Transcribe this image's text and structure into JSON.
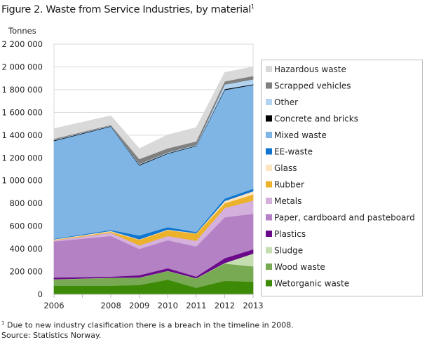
{
  "title": "Figure 2. Waste from Service Industries, by material",
  "title_footnote_mark": "1",
  "footnote_mark": "1",
  "footnote": "Due to new industry clasification there is a breach in the timeline in 2008.",
  "source": "Source: Statistics Norway.",
  "chart_data": {
    "type": "area",
    "stacked": true,
    "title": "Figure 2. Waste from Service Industries, by material",
    "ylabel": "Tonnes",
    "xlabel": "",
    "x": [
      2006,
      2008,
      2009,
      2010,
      2011,
      2012,
      2013
    ],
    "x_ticks": [
      2006,
      2007,
      2008,
      2009,
      2010,
      2011,
      2012,
      2013
    ],
    "x_tick_labels": [
      "2006",
      "",
      "2008",
      "2009",
      "2010",
      "2011",
      "2012",
      "2013"
    ],
    "ylim": [
      0,
      2200000
    ],
    "y_ticks": [
      0,
      200000,
      400000,
      600000,
      800000,
      1000000,
      1200000,
      1400000,
      1600000,
      1800000,
      2000000,
      2200000
    ],
    "y_tick_labels": [
      "0",
      "200 000",
      "400 000",
      "600 000",
      "800 000",
      "1 000 000",
      "1 200 000",
      "1 400 000",
      "1 600 000",
      "1 800 000",
      "2 000 000",
      "2 200 000"
    ],
    "grid": true,
    "legend_position": "right",
    "series": [
      {
        "name": "Wetorganic waste",
        "color": "#3c8a05",
        "values": [
          76000,
          76000,
          82000,
          129000,
          57000,
          119000,
          111000
        ]
      },
      {
        "name": "Wood waste",
        "color": "#77aa52",
        "values": [
          55000,
          68000,
          64000,
          76000,
          83000,
          152000,
          135000
        ]
      },
      {
        "name": "Sludge",
        "color": "#c5deb1",
        "values": [
          2000,
          2000,
          2000,
          2000,
          2000,
          5000,
          113000
        ]
      },
      {
        "name": "Plastics",
        "color": "#6a0a8a",
        "values": [
          15000,
          10000,
          20000,
          23000,
          14000,
          42000,
          37000
        ]
      },
      {
        "name": "Paper, cardboard and pasteboard",
        "color": "#b481c4",
        "values": [
          318000,
          357000,
          232000,
          246000,
          265000,
          360000,
          313000
        ]
      },
      {
        "name": "Metals",
        "color": "#d4b1dd",
        "values": [
          8000,
          29000,
          31000,
          37000,
          51000,
          82000,
          116000
        ]
      },
      {
        "name": "Rubber",
        "color": "#ecb22b",
        "values": [
          4000,
          8000,
          49000,
          52000,
          62000,
          41000,
          54000
        ]
      },
      {
        "name": "Glass",
        "color": "#fce4c0",
        "values": [
          6000,
          8000,
          4000,
          5000,
          4000,
          20000,
          28000
        ]
      },
      {
        "name": "EE-waste",
        "color": "#0f75d0",
        "values": [
          4000,
          8000,
          33000,
          21000,
          10000,
          21000,
          21000
        ]
      },
      {
        "name": "Mixed waste",
        "color": "#7fb5e4",
        "values": [
          861000,
          910000,
          617000,
          646000,
          756000,
          955000,
          914000
        ]
      },
      {
        "name": "Concrete and bricks",
        "color": "#000000",
        "values": [
          5000,
          4000,
          6000,
          5000,
          4000,
          8000,
          5000
        ]
      },
      {
        "name": "Other",
        "color": "#b4d3f0",
        "values": [
          6000,
          4000,
          6000,
          6000,
          6000,
          40000,
          43000
        ]
      },
      {
        "name": "Scrapped vehicles",
        "color": "#808080",
        "values": [
          8000,
          6000,
          44000,
          36000,
          31000,
          28000,
          30000
        ]
      },
      {
        "name": "Hazardous waste",
        "color": "#d9d9d9",
        "values": [
          90000,
          81000,
          92000,
          119000,
          122000,
          78000,
          82000
        ]
      }
    ]
  }
}
